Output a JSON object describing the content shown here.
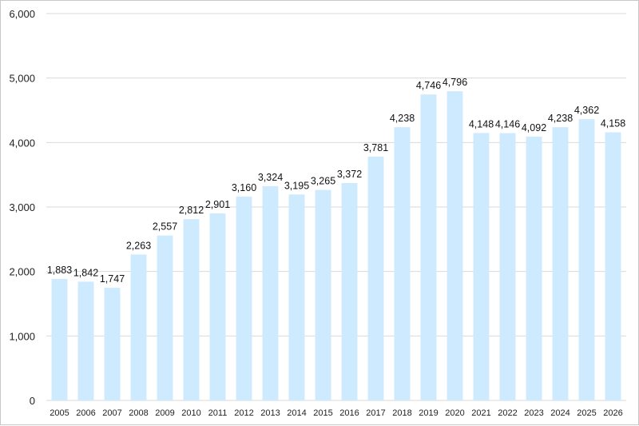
{
  "chart_data": {
    "type": "bar",
    "categories": [
      "2005",
      "2006",
      "2007",
      "2008",
      "2009",
      "2010",
      "2011",
      "2012",
      "2013",
      "2014",
      "2015",
      "2016",
      "2017",
      "2018",
      "2019",
      "2020",
      "2021",
      "2022",
      "2023",
      "2024",
      "2025",
      "2026"
    ],
    "values": [
      1883,
      1842,
      1747,
      2263,
      2557,
      2812,
      2901,
      3160,
      3324,
      3195,
      3265,
      3372,
      3781,
      4238,
      4746,
      4796,
      4148,
      4146,
      4092,
      4238,
      4362,
      4158
    ],
    "data_labels": [
      "1,883",
      "1,842",
      "1,747",
      "2,263",
      "2,557",
      "2,812",
      "2,901",
      "3,160",
      "3,324",
      "3,195",
      "3,265",
      "3,372",
      "3,781",
      "4,238",
      "4,746",
      "4,796",
      "4,148",
      "4,146",
      "4,092",
      "4,238",
      "4,362",
      "4,158"
    ],
    "y_ticks": [
      0,
      1000,
      2000,
      3000,
      4000,
      5000,
      6000
    ],
    "y_tick_labels": [
      "0",
      "1,000",
      "2,000",
      "3,000",
      "4,000",
      "5,000",
      "6,000"
    ],
    "ylim": [
      0,
      6000
    ],
    "grid": true,
    "bar_color": "#cdeaff",
    "grid_color": "#d9d9d9",
    "title": "",
    "xlabel": "",
    "ylabel": ""
  }
}
